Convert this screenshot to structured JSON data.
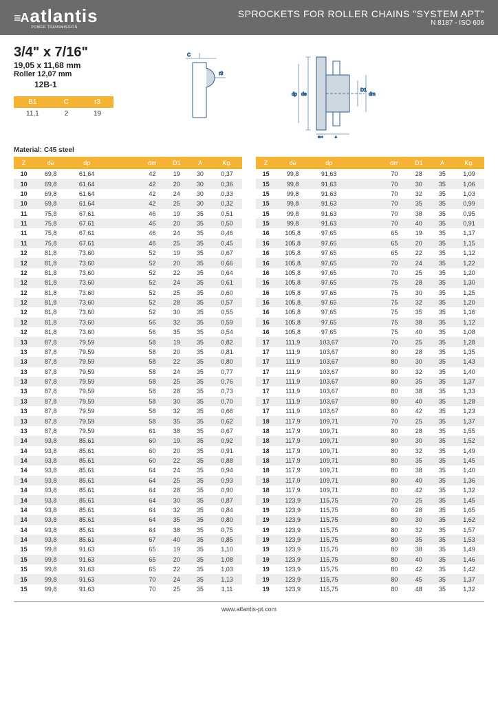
{
  "header": {
    "logo_mark": "≡A",
    "logo_text": "atlantis",
    "logo_sub": "POWER TRANSMISSION",
    "title": "SPROCKETS FOR ROLLER CHAINS \"SYSTEM APT\"",
    "subtitle": "N 8187 - ISO 606"
  },
  "specs": {
    "size_main": "3/4\" x 7/16\"",
    "size_mm": "19,05 x 11,68 mm",
    "roller": "Roller 12,07 mm",
    "code": "12B-1",
    "small_headers": [
      "B1",
      "C",
      "r3"
    ],
    "small_values": [
      "11,1",
      "2",
      "19"
    ],
    "material": "Material: C45 steel"
  },
  "columns": [
    "Z",
    "de",
    "dp",
    "",
    "dm",
    "D1",
    "A",
    "Kg."
  ],
  "table_left": [
    [
      "10",
      "69,8",
      "61,64",
      "",
      "42",
      "19",
      "30",
      "0,37"
    ],
    [
      "10",
      "69,8",
      "61,64",
      "",
      "42",
      "20",
      "30",
      "0,36"
    ],
    [
      "10",
      "69,8",
      "61,64",
      "",
      "42",
      "24",
      "30",
      "0,33"
    ],
    [
      "10",
      "69,8",
      "61,64",
      "",
      "42",
      "25",
      "30",
      "0,32"
    ],
    [
      "11",
      "75,8",
      "67,61",
      "",
      "46",
      "19",
      "35",
      "0,51"
    ],
    [
      "11",
      "75,8",
      "67,61",
      "",
      "46",
      "20",
      "35",
      "0,50"
    ],
    [
      "11",
      "75,8",
      "67,61",
      "",
      "46",
      "24",
      "35",
      "0,46"
    ],
    [
      "11",
      "75,8",
      "67,61",
      "",
      "46",
      "25",
      "35",
      "0,45"
    ],
    [
      "12",
      "81,8",
      "73,60",
      "",
      "52",
      "19",
      "35",
      "0,67"
    ],
    [
      "12",
      "81,8",
      "73,60",
      "",
      "52",
      "20",
      "35",
      "0,66"
    ],
    [
      "12",
      "81,8",
      "73,60",
      "",
      "52",
      "22",
      "35",
      "0,64"
    ],
    [
      "12",
      "81,8",
      "73,60",
      "",
      "52",
      "24",
      "35",
      "0,61"
    ],
    [
      "12",
      "81,8",
      "73,60",
      "",
      "52",
      "25",
      "35",
      "0,60"
    ],
    [
      "12",
      "81,8",
      "73,60",
      "",
      "52",
      "28",
      "35",
      "0,57"
    ],
    [
      "12",
      "81,8",
      "73,60",
      "",
      "52",
      "30",
      "35",
      "0,55"
    ],
    [
      "12",
      "81,8",
      "73,60",
      "",
      "56",
      "32",
      "35",
      "0,59"
    ],
    [
      "12",
      "81,8",
      "73,60",
      "",
      "56",
      "35",
      "35",
      "0,54"
    ],
    [
      "13",
      "87,8",
      "79,59",
      "",
      "58",
      "19",
      "35",
      "0,82"
    ],
    [
      "13",
      "87,8",
      "79,59",
      "",
      "58",
      "20",
      "35",
      "0,81"
    ],
    [
      "13",
      "87,8",
      "79,59",
      "",
      "58",
      "22",
      "35",
      "0,80"
    ],
    [
      "13",
      "87,8",
      "79,59",
      "",
      "58",
      "24",
      "35",
      "0,77"
    ],
    [
      "13",
      "87,8",
      "79,59",
      "",
      "58",
      "25",
      "35",
      "0,76"
    ],
    [
      "13",
      "87,8",
      "79,59",
      "",
      "58",
      "28",
      "35",
      "0,73"
    ],
    [
      "13",
      "87,8",
      "79,59",
      "",
      "58",
      "30",
      "35",
      "0,70"
    ],
    [
      "13",
      "87,8",
      "79,59",
      "",
      "58",
      "32",
      "35",
      "0,66"
    ],
    [
      "13",
      "87,8",
      "79,59",
      "",
      "58",
      "35",
      "35",
      "0,62"
    ],
    [
      "13",
      "87,8",
      "79,59",
      "",
      "61",
      "38",
      "35",
      "0,67"
    ],
    [
      "14",
      "93,8",
      "85,61",
      "",
      "60",
      "19",
      "35",
      "0,92"
    ],
    [
      "14",
      "93,8",
      "85,61",
      "",
      "60",
      "20",
      "35",
      "0,91"
    ],
    [
      "14",
      "93,8",
      "85,61",
      "",
      "60",
      "22",
      "35",
      "0,88"
    ],
    [
      "14",
      "93,8",
      "85,61",
      "",
      "64",
      "24",
      "35",
      "0,94"
    ],
    [
      "14",
      "93,8",
      "85,61",
      "",
      "64",
      "25",
      "35",
      "0,93"
    ],
    [
      "14",
      "93,8",
      "85,61",
      "",
      "64",
      "28",
      "35",
      "0,90"
    ],
    [
      "14",
      "93,8",
      "85,61",
      "",
      "64",
      "30",
      "35",
      "0,87"
    ],
    [
      "14",
      "93,8",
      "85,61",
      "",
      "64",
      "32",
      "35",
      "0,84"
    ],
    [
      "14",
      "93,8",
      "85,61",
      "",
      "64",
      "35",
      "35",
      "0,80"
    ],
    [
      "14",
      "93,8",
      "85,61",
      "",
      "64",
      "38",
      "35",
      "0,75"
    ],
    [
      "14",
      "93,8",
      "85,61",
      "",
      "67",
      "40",
      "35",
      "0,85"
    ],
    [
      "15",
      "99,8",
      "91,63",
      "",
      "65",
      "19",
      "35",
      "1,10"
    ],
    [
      "15",
      "99,8",
      "91,63",
      "",
      "65",
      "20",
      "35",
      "1,08"
    ],
    [
      "15",
      "99,8",
      "91,63",
      "",
      "65",
      "22",
      "35",
      "1,03"
    ],
    [
      "15",
      "99,8",
      "91,63",
      "",
      "70",
      "24",
      "35",
      "1,13"
    ],
    [
      "15",
      "99,8",
      "91,63",
      "",
      "70",
      "25",
      "35",
      "1,11"
    ]
  ],
  "table_right": [
    [
      "15",
      "99,8",
      "91,63",
      "",
      "70",
      "28",
      "35",
      "1,09"
    ],
    [
      "15",
      "99,8",
      "91,63",
      "",
      "70",
      "30",
      "35",
      "1,06"
    ],
    [
      "15",
      "99,8",
      "91,63",
      "",
      "70",
      "32",
      "35",
      "1,03"
    ],
    [
      "15",
      "99,8",
      "91,63",
      "",
      "70",
      "35",
      "35",
      "0,99"
    ],
    [
      "15",
      "99,8",
      "91,63",
      "",
      "70",
      "38",
      "35",
      "0,95"
    ],
    [
      "15",
      "99,8",
      "91,63",
      "",
      "70",
      "40",
      "35",
      "0,91"
    ],
    [
      "16",
      "105,8",
      "97,65",
      "",
      "65",
      "19",
      "35",
      "1,17"
    ],
    [
      "16",
      "105,8",
      "97,65",
      "",
      "65",
      "20",
      "35",
      "1,15"
    ],
    [
      "16",
      "105,8",
      "97,65",
      "",
      "65",
      "22",
      "35",
      "1,12"
    ],
    [
      "16",
      "105,8",
      "97,65",
      "",
      "70",
      "24",
      "35",
      "1,22"
    ],
    [
      "16",
      "105,8",
      "97,65",
      "",
      "70",
      "25",
      "35",
      "1,20"
    ],
    [
      "16",
      "105,8",
      "97,65",
      "",
      "75",
      "28",
      "35",
      "1,30"
    ],
    [
      "16",
      "105,8",
      "97,65",
      "",
      "75",
      "30",
      "35",
      "1,25"
    ],
    [
      "16",
      "105,8",
      "97,65",
      "",
      "75",
      "32",
      "35",
      "1,20"
    ],
    [
      "16",
      "105,8",
      "97,65",
      "",
      "75",
      "35",
      "35",
      "1,16"
    ],
    [
      "16",
      "105,8",
      "97,65",
      "",
      "75",
      "38",
      "35",
      "1,12"
    ],
    [
      "16",
      "105,8",
      "97,65",
      "",
      "75",
      "40",
      "35",
      "1,08"
    ],
    [
      "17",
      "111,9",
      "103,67",
      "",
      "70",
      "25",
      "35",
      "1,28"
    ],
    [
      "17",
      "111,9",
      "103,67",
      "",
      "80",
      "28",
      "35",
      "1,35"
    ],
    [
      "17",
      "111,9",
      "103,67",
      "",
      "80",
      "30",
      "35",
      "1,43"
    ],
    [
      "17",
      "111,9",
      "103,67",
      "",
      "80",
      "32",
      "35",
      "1,40"
    ],
    [
      "17",
      "111,9",
      "103,67",
      "",
      "80",
      "35",
      "35",
      "1,37"
    ],
    [
      "17",
      "111,9",
      "103,67",
      "",
      "80",
      "38",
      "35",
      "1,33"
    ],
    [
      "17",
      "111,9",
      "103,67",
      "",
      "80",
      "40",
      "35",
      "1,28"
    ],
    [
      "17",
      "111,9",
      "103,67",
      "",
      "80",
      "42",
      "35",
      "1,23"
    ],
    [
      "18",
      "117,9",
      "109,71",
      "",
      "70",
      "25",
      "35",
      "1,37"
    ],
    [
      "18",
      "117,9",
      "109,71",
      "",
      "80",
      "28",
      "35",
      "1,55"
    ],
    [
      "18",
      "117,9",
      "109,71",
      "",
      "80",
      "30",
      "35",
      "1,52"
    ],
    [
      "18",
      "117,9",
      "109,71",
      "",
      "80",
      "32",
      "35",
      "1,49"
    ],
    [
      "18",
      "117,9",
      "109,71",
      "",
      "80",
      "35",
      "35",
      "1,45"
    ],
    [
      "18",
      "117,9",
      "109,71",
      "",
      "80",
      "38",
      "35",
      "1,40"
    ],
    [
      "18",
      "117,9",
      "109,71",
      "",
      "80",
      "40",
      "35",
      "1,36"
    ],
    [
      "18",
      "117,9",
      "109,71",
      "",
      "80",
      "42",
      "35",
      "1,32"
    ],
    [
      "19",
      "123,9",
      "115,75",
      "",
      "70",
      "25",
      "35",
      "1,45"
    ],
    [
      "19",
      "123,9",
      "115,75",
      "",
      "80",
      "28",
      "35",
      "1,65"
    ],
    [
      "19",
      "123,9",
      "115,75",
      "",
      "80",
      "30",
      "35",
      "1,62"
    ],
    [
      "19",
      "123,9",
      "115,75",
      "",
      "80",
      "32",
      "35",
      "1,57"
    ],
    [
      "19",
      "123,9",
      "115,75",
      "",
      "80",
      "35",
      "35",
      "1,53"
    ],
    [
      "19",
      "123,9",
      "115,75",
      "",
      "80",
      "38",
      "35",
      "1,49"
    ],
    [
      "19",
      "123,9",
      "115,75",
      "",
      "80",
      "40",
      "35",
      "1,46"
    ],
    [
      "19",
      "123,9",
      "115,75",
      "",
      "80",
      "42",
      "35",
      "1,42"
    ],
    [
      "19",
      "123,9",
      "115,75",
      "",
      "80",
      "45",
      "35",
      "1,37"
    ],
    [
      "19",
      "123,9",
      "115,75",
      "",
      "80",
      "48",
      "35",
      "1,32"
    ]
  ],
  "footer": {
    "url": "www.atlantis-pt.com"
  },
  "styling": {
    "header_bg": "#6b6b6b",
    "accent": "#f5b333",
    "row_stripe": "#ececec",
    "diagram_stroke": "#2a5d8f",
    "diagram_fill": "#cfd8e0"
  }
}
